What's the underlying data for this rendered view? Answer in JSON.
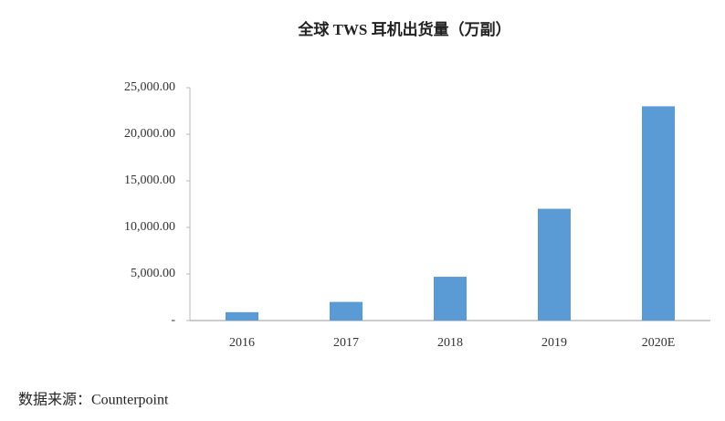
{
  "chart_data": {
    "type": "bar",
    "title": "全球 TWS 耳机出货量（万副）",
    "categories": [
      "2016",
      "2017",
      "2018",
      "2019",
      "2020E"
    ],
    "values": [
      900,
      2000,
      4700,
      12000,
      23000
    ],
    "color": "#5b9bd5",
    "ylim": [
      0,
      25000
    ],
    "yticks": [
      {
        "value": 0,
        "label": "-"
      },
      {
        "value": 5000,
        "label": "5,000.00"
      },
      {
        "value": 10000,
        "label": "10,000.00"
      },
      {
        "value": 15000,
        "label": "15,000.00"
      },
      {
        "value": 20000,
        "label": "20,000.00"
      },
      {
        "value": 25000,
        "label": "25,000.00"
      }
    ],
    "grid": false,
    "source": "数据来源：Counterpoint"
  }
}
